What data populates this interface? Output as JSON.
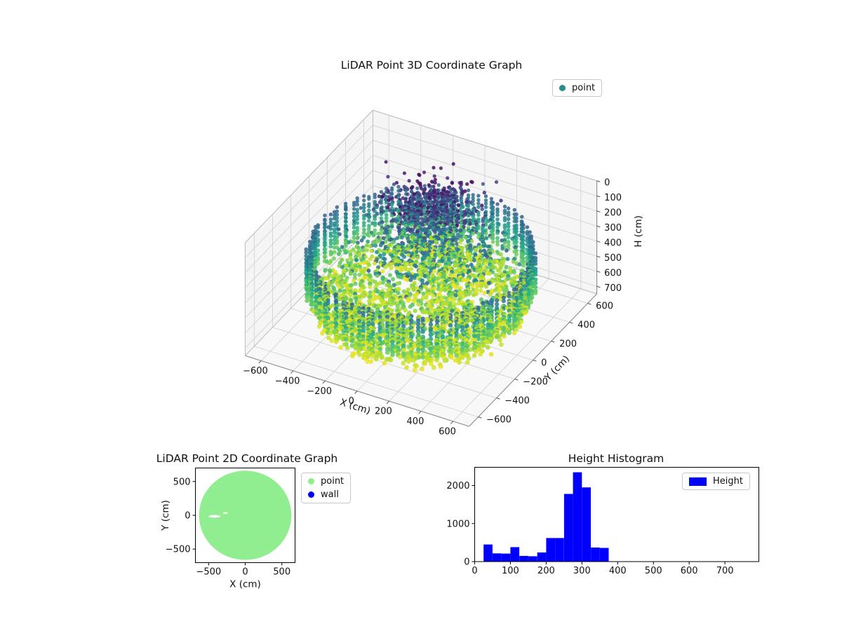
{
  "figure": {
    "background": "#ffffff"
  },
  "chart_data": [
    {
      "id": "lidar_3d",
      "type": "scatter",
      "projection": "3d",
      "title": "LiDAR Point 3D Coordinate Graph",
      "xlabel": "X (cm)",
      "ylabel": "Y (cm)",
      "zlabel": "H (cm)",
      "xlim": [
        -700,
        700
      ],
      "ylim": [
        -700,
        700
      ],
      "zlim": [
        0,
        750
      ],
      "z_axis_inverted": true,
      "xticks": [
        -600,
        -400,
        -200,
        0,
        200,
        400,
        600
      ],
      "yticks": [
        600,
        400,
        200,
        0,
        -200,
        -400,
        -600
      ],
      "zticks": [
        0,
        100,
        200,
        300,
        400,
        500,
        600,
        700
      ],
      "legend": [
        {
          "label": "point",
          "color": "#21918c"
        }
      ],
      "colormap": "viridis",
      "color_norm_h": [
        80,
        660
      ],
      "point_cloud": {
        "wall_ring": {
          "radius": 615,
          "h_top": 265,
          "h_bottom": 530,
          "columns": 110,
          "points_per_column": 12
        },
        "floor": {
          "radius": 590,
          "h_min": 470,
          "h_max": 645,
          "count": 2400
        },
        "mid_cluster": {
          "cx": -20,
          "cy": 180,
          "spread": 230,
          "h_min": 230,
          "h_max": 400,
          "count": 650
        },
        "top_cluster": {
          "cx": -80,
          "cy": 265,
          "spread": 120,
          "h_min": 90,
          "h_max": 255,
          "count": 520
        },
        "holes": [
          [
            -260,
            120,
            150,
            70
          ],
          [
            330,
            160,
            100,
            80
          ],
          [
            -40,
            -60,
            70,
            40
          ],
          [
            150,
            -260,
            90,
            50
          ]
        ]
      }
    },
    {
      "id": "lidar_2d",
      "type": "scatter",
      "title": "LiDAR Point 2D Coordinate Graph",
      "xlabel": "X (cm)",
      "ylabel": "Y (cm)",
      "xlim": [
        -680,
        680
      ],
      "ylim": [
        -700,
        700
      ],
      "xticks": [
        -500,
        0,
        500
      ],
      "yticks": [
        500,
        0,
        -500
      ],
      "legend": [
        {
          "label": "point",
          "color": "#90ee90"
        },
        {
          "label": "wall",
          "color": "#0000ff"
        }
      ],
      "blob": {
        "cx": 0,
        "cy": 0,
        "rx": 630,
        "ry": 660
      },
      "notches": [
        [
          -420,
          -15,
          80,
          20
        ],
        [
          -270,
          35,
          32,
          13
        ]
      ]
    },
    {
      "id": "height_histogram",
      "type": "bar",
      "title": "Height Histogram",
      "xlim": [
        0,
        795
      ],
      "ylim": [
        0,
        2480
      ],
      "xticks": [
        0,
        100,
        200,
        300,
        400,
        500,
        600,
        700
      ],
      "yticks": [
        0,
        1000,
        2000
      ],
      "bar_color": "#0000ff",
      "legend": [
        {
          "label": "Height",
          "color": "#0000ff"
        }
      ],
      "bins": {
        "start": 25,
        "width": 25
      },
      "values": [
        450,
        215,
        210,
        380,
        150,
        140,
        240,
        620,
        620,
        1780,
        2350,
        1950,
        370,
        360
      ]
    }
  ]
}
